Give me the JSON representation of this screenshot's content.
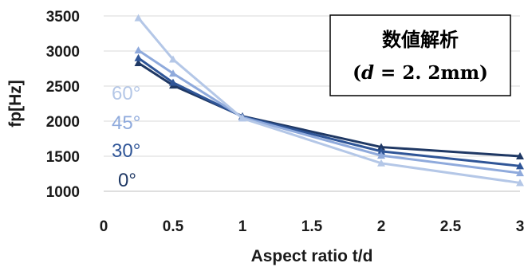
{
  "chart_data": {
    "type": "line",
    "xlabel": "Aspect ratio t/d",
    "ylabel": "fp[Hz]",
    "xlim": [
      0,
      3
    ],
    "ylim": [
      1000,
      3500
    ],
    "xticks": [
      "0",
      "0.5",
      "1",
      "1.5",
      "2",
      "2.5",
      "3"
    ],
    "yticks": [
      "1000",
      "1500",
      "2000",
      "2500",
      "3000",
      "3500"
    ],
    "grid": "horizontal",
    "annotation": {
      "title": "数値解析",
      "line_open": "(",
      "var": "d",
      "equals": " = 2. 2mm",
      "line_close": ")"
    },
    "x": [
      0.25,
      0.5,
      1,
      2,
      3
    ],
    "series": [
      {
        "name": "0°",
        "color": "#1f3864",
        "values": [
          2830,
          2510,
          2070,
          1630,
          1500
        ]
      },
      {
        "name": "30°",
        "color": "#2f5597",
        "values": [
          2900,
          2550,
          2065,
          1570,
          1360
        ]
      },
      {
        "name": "45°",
        "color": "#8faadc",
        "values": [
          3010,
          2680,
          2055,
          1510,
          1260
        ]
      },
      {
        "name": "60°",
        "color": "#b4c7e7",
        "values": [
          3470,
          2880,
          2040,
          1400,
          1120
        ]
      }
    ],
    "series_label_colors": [
      "#1f3864",
      "#2f5597",
      "#8faadc",
      "#b4c7e7"
    ]
  }
}
